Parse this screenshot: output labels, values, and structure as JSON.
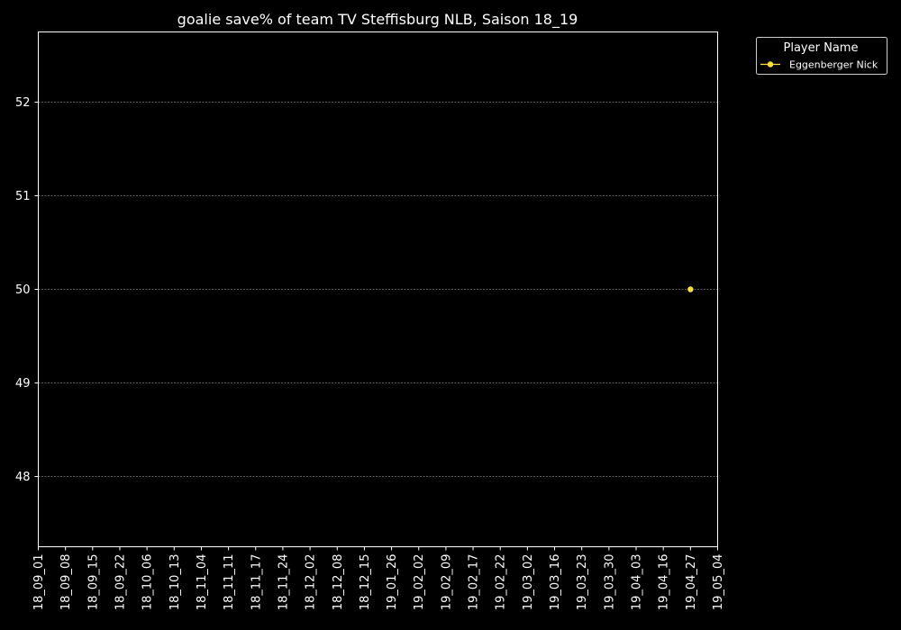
{
  "chart_data": {
    "type": "line",
    "title": "goalie save% of team TV Steffisburg NLB, Saison 18_19",
    "xlabel": "",
    "ylabel": "",
    "categories": [
      "18_09_01",
      "18_09_08",
      "18_09_15",
      "18_09_22",
      "18_10_06",
      "18_10_13",
      "18_11_04",
      "18_11_11",
      "18_11_17",
      "18_11_24",
      "18_12_02",
      "18_12_08",
      "18_12_15",
      "19_01_26",
      "19_02_02",
      "19_02_09",
      "19_02_17",
      "19_02_22",
      "19_03_02",
      "19_03_16",
      "19_03_23",
      "19_03_30",
      "19_04_03",
      "19_04_16",
      "19_04_27",
      "19_05_04"
    ],
    "ylim": [
      47.25,
      52.75
    ],
    "yticks": [
      48,
      49,
      50,
      51,
      52
    ],
    "grid": "y",
    "legend": {
      "title": "Player Name",
      "position": "outside-top-right"
    },
    "series": [
      {
        "name": "Eggenberger Nick",
        "color": "#ffe135",
        "points": [
          {
            "x": "19_04_27",
            "y": 50
          }
        ]
      }
    ]
  },
  "colors": {
    "background": "#000000",
    "axes": "#ffffff",
    "grid": "#808080"
  }
}
